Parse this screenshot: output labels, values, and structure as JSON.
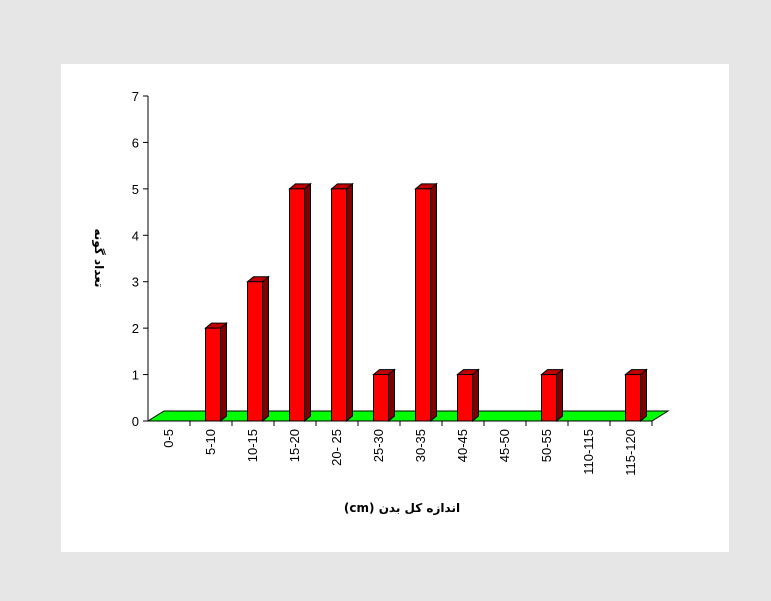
{
  "chart_data": {
    "type": "bar",
    "categories": [
      "0-5",
      "5-10",
      "10-15",
      "15-20",
      "20- 25",
      "25-30",
      "30-35",
      "40-45",
      "45-50",
      "50-55",
      "110-115",
      "115-120"
    ],
    "values": [
      0,
      2,
      3,
      5,
      5,
      1,
      5,
      1,
      0,
      1,
      0,
      1
    ],
    "xlabel": "اندازه کل بدن (cm)",
    "ylabel": "تعداد گونه",
    "ylim": [
      0,
      7
    ],
    "yticks": [
      0,
      1,
      2,
      3,
      4,
      5,
      6,
      7
    ],
    "grid": false,
    "legend": "none",
    "colors": {
      "bar_front": "#ff0000",
      "bar_side": "#800000",
      "bar_top": "#c00000",
      "floor": "#00ff00",
      "axis": "#000000"
    }
  }
}
